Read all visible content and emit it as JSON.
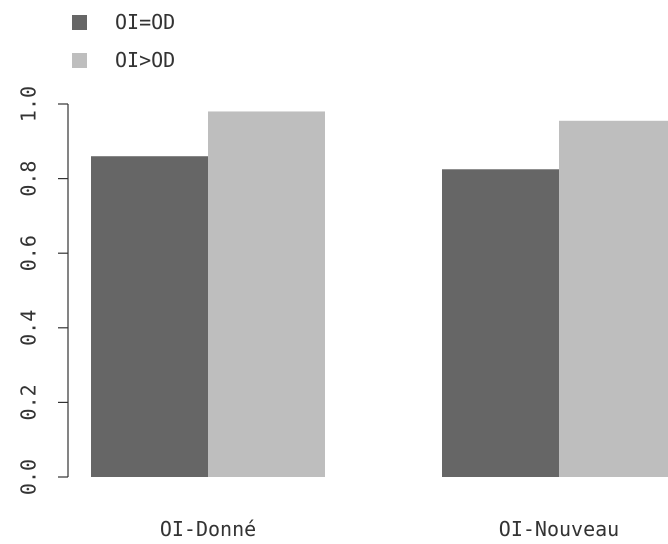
{
  "chart_data": {
    "type": "bar",
    "categories": [
      "OI-Donné",
      "OI-Nouveau"
    ],
    "series": [
      {
        "name": "OI=OD",
        "color": "#666666",
        "values": [
          0.86,
          0.825
        ]
      },
      {
        "name": "OI>OD",
        "color": "#bebebe",
        "values": [
          0.98,
          0.955
        ]
      }
    ],
    "ylim": [
      0,
      1.0
    ],
    "yticks": [
      0.0,
      0.2,
      0.4,
      0.6,
      0.8,
      1.0
    ],
    "ytick_labels": [
      "0.0",
      "0.2",
      "0.4",
      "0.6",
      "0.8",
      "1.0"
    ],
    "legend_position": "top-left",
    "grid": false
  }
}
